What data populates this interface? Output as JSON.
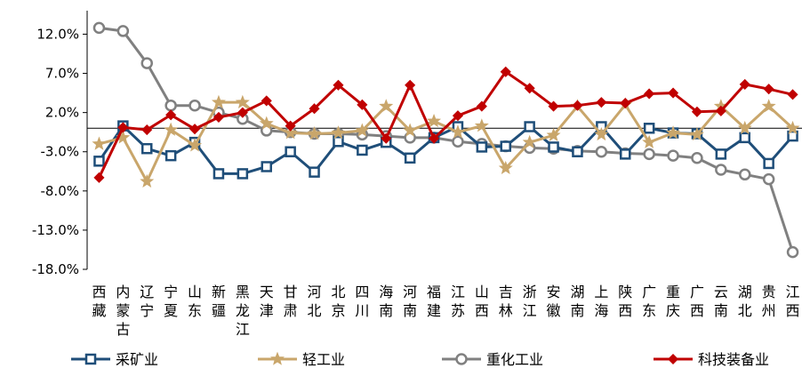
{
  "chart_data": {
    "type": "line",
    "title": "",
    "xlabel": "",
    "ylabel": "",
    "ylim": [
      -18,
      15
    ],
    "yticks": [
      12,
      7,
      2,
      -3,
      -8,
      -13,
      -18
    ],
    "ytick_labels": [
      "12.0%",
      "7.0%",
      "2.0%",
      "-3.0%",
      "-8.0%",
      "-13.0%",
      "-18.0%"
    ],
    "grid": false,
    "legend_position": "bottom",
    "categories": [
      "西藏",
      "内蒙古",
      "辽宁",
      "宁夏",
      "山东",
      "新疆",
      "黑龙江",
      "天津",
      "甘肃",
      "河北",
      "北京",
      "四川",
      "海南",
      "河南",
      "福建",
      "江苏",
      "山西",
      "吉林",
      "浙江",
      "安徽",
      "湖南",
      "上海",
      "陕西",
      "广东",
      "重庆",
      "广西",
      "云南",
      "湖北",
      "贵州",
      "江西"
    ],
    "series": [
      {
        "name": "采矿业",
        "color": "#1f4e79",
        "marker": "square",
        "values": [
          -4.2,
          0.3,
          -2.6,
          -3.5,
          -1.8,
          -5.8,
          -5.8,
          -4.9,
          -3.0,
          -5.6,
          -1.7,
          -2.8,
          -1.8,
          -3.8,
          -1.2,
          0.2,
          -2.4,
          -2.3,
          0.2,
          -2.4,
          -3.0,
          0.2,
          -3.3,
          0.0,
          -0.6,
          -0.7,
          -3.3,
          -1.2,
          -4.5,
          -1.0
        ]
      },
      {
        "name": "轻工业",
        "color": "#c9a66b",
        "marker": "star",
        "values": [
          -2.0,
          -1.2,
          -6.8,
          -0.2,
          -2.2,
          3.3,
          3.3,
          0.6,
          -0.6,
          -0.7,
          -0.6,
          -0.3,
          2.8,
          -0.3,
          0.9,
          -0.5,
          0.3,
          -5.1,
          -1.8,
          -0.9,
          2.8,
          -0.8,
          3.0,
          -1.8,
          -0.6,
          -0.8,
          2.8,
          0.0,
          2.8,
          0.0
        ]
      },
      {
        "name": "重化工业",
        "color": "#808080",
        "marker": "circle",
        "values": [
          12.8,
          12.4,
          8.3,
          2.9,
          2.9,
          2.0,
          1.2,
          -0.3,
          -0.5,
          -0.7,
          -0.7,
          -0.8,
          -1.0,
          -1.2,
          -1.2,
          -1.7,
          -2.0,
          -2.3,
          -2.5,
          -2.6,
          -2.9,
          -3.0,
          -3.2,
          -3.3,
          -3.5,
          -3.8,
          -5.3,
          -5.9,
          -6.5,
          -15.8
        ]
      },
      {
        "name": "科技装备业",
        "color": "#c00000",
        "marker": "diamond",
        "values": [
          -6.3,
          0.1,
          -0.2,
          1.7,
          -0.1,
          1.4,
          2.0,
          3.5,
          0.3,
          2.5,
          5.5,
          3.0,
          -1.3,
          5.5,
          -1.3,
          1.6,
          2.8,
          7.2,
          5.1,
          2.8,
          2.9,
          3.3,
          3.2,
          4.4,
          4.5,
          2.1,
          2.2,
          5.6,
          5.0,
          4.3
        ]
      }
    ]
  }
}
